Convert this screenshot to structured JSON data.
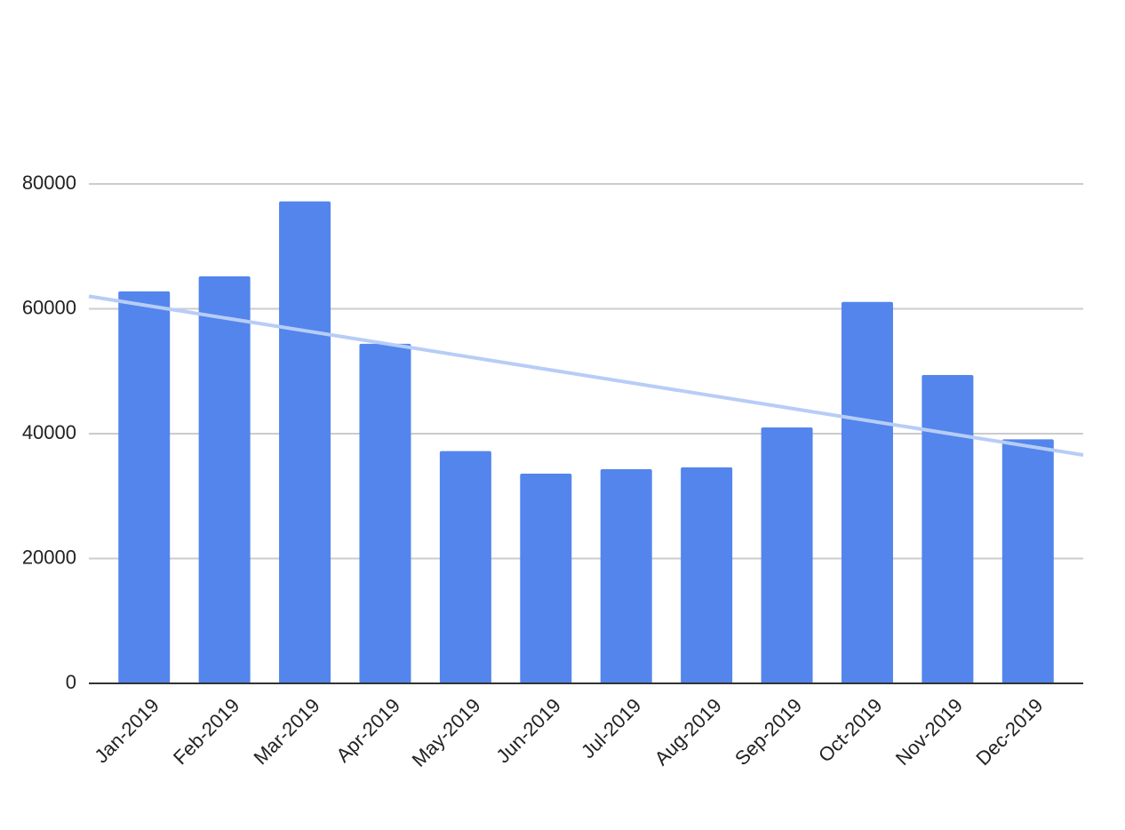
{
  "chart_data": {
    "type": "bar",
    "categories": [
      "Jan-2019",
      "Feb-2019",
      "Mar-2019",
      "Apr-2019",
      "May-2019",
      "Jun-2019",
      "Jul-2019",
      "Aug-2019",
      "Sep-2019",
      "Oct-2019",
      "Nov-2019",
      "Dec-2019"
    ],
    "values": [
      62800,
      65200,
      77200,
      54400,
      37200,
      33600,
      34300,
      34600,
      41000,
      61100,
      49400,
      39100
    ],
    "color": "#5385ec",
    "trendline": {
      "color": "#b7cdf7",
      "values": [
        60600,
        38000
      ]
    },
    "ylim": [
      0,
      80000
    ],
    "yticks": [
      0,
      20000,
      40000,
      60000,
      80000
    ],
    "grid": true
  }
}
